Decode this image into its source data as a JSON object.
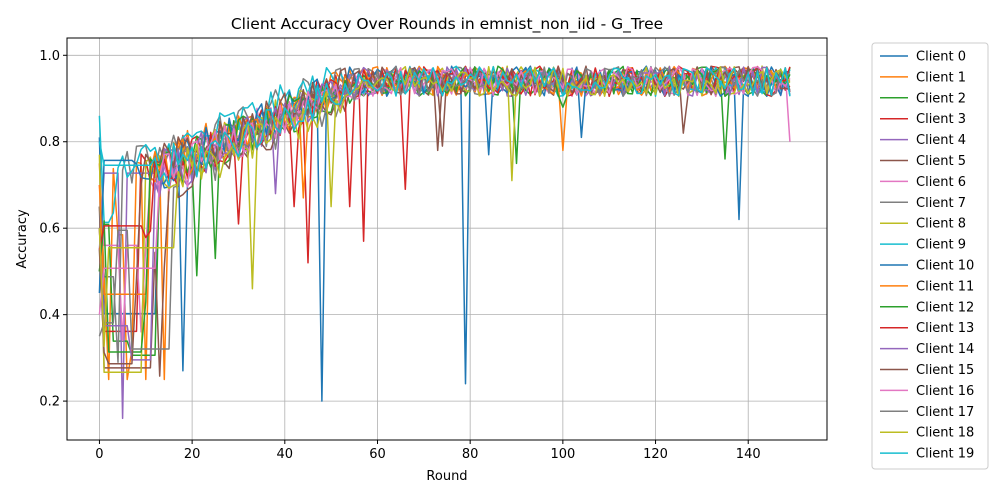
{
  "chart_data": {
    "type": "line",
    "title": "Client Accuracy Over Rounds in emnist_non_iid - G_Tree",
    "xlabel": "Round",
    "ylabel": "Accuracy",
    "xlim": [
      -7,
      157
    ],
    "ylim": [
      0.11,
      1.04
    ],
    "xticks": [
      0,
      20,
      40,
      60,
      80,
      100,
      120,
      140
    ],
    "yticks": [
      0.2,
      0.4,
      0.6,
      0.8,
      1.0
    ],
    "ytick_labels": [
      "0.2",
      "0.4",
      "0.6",
      "0.8",
      "1.0"
    ],
    "grid": true,
    "legend_position": "outside-right",
    "rounds": 150,
    "series": [
      {
        "name": "Client 0",
        "color": "#1f77b4",
        "start": 0.81,
        "spikes": [
          [
            18,
            0.27
          ],
          [
            48,
            0.2
          ],
          [
            79,
            0.24
          ],
          [
            138,
            0.62
          ]
        ]
      },
      {
        "name": "Client 1",
        "color": "#ff7f0e",
        "start": 0.75,
        "spikes": [
          [
            2,
            0.25
          ],
          [
            6,
            0.25
          ],
          [
            10,
            0.25
          ],
          [
            14,
            0.25
          ]
        ]
      },
      {
        "name": "Client 2",
        "color": "#2ca02c",
        "start": 0.5,
        "spikes": [
          [
            21,
            0.49
          ],
          [
            25,
            0.53
          ],
          [
            90,
            0.75
          ],
          [
            135,
            0.76
          ]
        ]
      },
      {
        "name": "Client 3",
        "color": "#d62728",
        "start": 0.6,
        "spikes": [
          [
            30,
            0.61
          ],
          [
            45,
            0.52
          ],
          [
            57,
            0.57
          ],
          [
            66,
            0.69
          ]
        ]
      },
      {
        "name": "Client 4",
        "color": "#9467bd",
        "start": 0.55,
        "spikes": [
          [
            5,
            0.16
          ],
          [
            38,
            0.68
          ]
        ]
      },
      {
        "name": "Client 5",
        "color": "#8c564b",
        "start": 0.65,
        "spikes": [
          [
            74,
            0.79
          ],
          [
            126,
            0.82
          ]
        ]
      },
      {
        "name": "Client 6",
        "color": "#e377c2",
        "start": 0.7,
        "spikes": [
          [
            5,
            0.34
          ],
          [
            9,
            0.36
          ],
          [
            149,
            0.8
          ]
        ]
      },
      {
        "name": "Client 7",
        "color": "#7f7f7f",
        "start": 0.65,
        "spikes": [
          [
            4,
            0.29
          ]
        ]
      },
      {
        "name": "Client 8",
        "color": "#bcbd22",
        "start": 0.77,
        "spikes": [
          [
            33,
            0.46
          ],
          [
            89,
            0.71
          ]
        ]
      },
      {
        "name": "Client 9",
        "color": "#17becf",
        "start": 0.86,
        "spikes": []
      },
      {
        "name": "Client 10",
        "color": "#1f77b4",
        "start": 0.45,
        "spikes": [
          [
            84,
            0.77
          ],
          [
            104,
            0.81
          ]
        ]
      },
      {
        "name": "Client 11",
        "color": "#ff7f0e",
        "start": 0.7,
        "spikes": [
          [
            100,
            0.78
          ],
          [
            44,
            0.67
          ]
        ]
      },
      {
        "name": "Client 12",
        "color": "#2ca02c",
        "start": 0.5,
        "spikes": [
          [
            100,
            0.88
          ]
        ]
      },
      {
        "name": "Client 13",
        "color": "#d62728",
        "start": 0.55,
        "spikes": [
          [
            54,
            0.65
          ],
          [
            42,
            0.65
          ]
        ]
      },
      {
        "name": "Client 14",
        "color": "#9467bd",
        "start": 0.6,
        "spikes": []
      },
      {
        "name": "Client 15",
        "color": "#8c564b",
        "start": 0.55,
        "spikes": [
          [
            73,
            0.78
          ]
        ]
      },
      {
        "name": "Client 16",
        "color": "#e377c2",
        "start": 0.4,
        "spikes": []
      },
      {
        "name": "Client 17",
        "color": "#7f7f7f",
        "start": 0.35,
        "spikes": []
      },
      {
        "name": "Client 18",
        "color": "#bcbd22",
        "start": 0.6,
        "spikes": [
          [
            50,
            0.65
          ]
        ]
      },
      {
        "name": "Client 19",
        "color": "#17becf",
        "start": 0.8,
        "spikes": []
      }
    ]
  }
}
